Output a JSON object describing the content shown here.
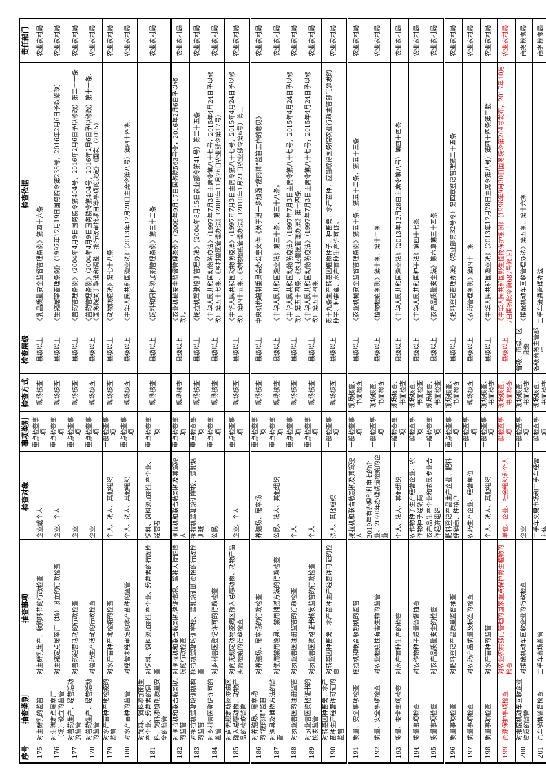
{
  "table": {
    "headers": [
      "序号",
      "抽查类别",
      "抽查事项",
      "检查对象",
      "事项类别",
      "检查方式",
      "检查层级",
      "检查依据",
      "责任部门"
    ],
    "rows": [
      {
        "no": "175",
        "category": "对生鲜乳的监管",
        "item": "对生鲜乳生产、收购环节的行政检查",
        "target": "企业或个人",
        "item_type": "重点检查事项",
        "method": "现场核查",
        "level": "县级以上",
        "basis": "《乳品质量安全监督管理条例》第四十六条",
        "department": "农业农村局",
        "red": false,
        "section_break": false
      },
      {
        "no": "176",
        "category": "对生猪定点屠宰厂（场）设立的监管",
        "item": "对生猪定点屠宰厂（场）设立的行政检查",
        "target": "企业、个人",
        "item_type": "重点检查事项",
        "method": "现场核查",
        "level": "县级以上",
        "basis": "《生猪屠宰管理条例》（1997年12月19日国务院令第238号，2016年2月6日予以修改）",
        "department": "农业农村局",
        "red": false,
        "section_break": false
      },
      {
        "no": "177",
        "category": "对兽药生产、经营活动的监管",
        "item": "对兽药经营活动的行政检查",
        "target": "企业",
        "item_type": "重点检查事项",
        "method": "现场核查",
        "level": "县级以上",
        "basis": "《兽药管理条例》（2004年4月9日国务院令第404号，2016年2月6日予以修改）第二十一条",
        "department": "农业农村局",
        "red": false,
        "section_break": false
      },
      {
        "no": "178",
        "category": "对兽药生产、经营活动的监管",
        "item": "对兽药生产活动的行政检查",
        "target": "企业",
        "item_type": "重点检查事项",
        "method": "现场核查",
        "level": "县级以上",
        "basis": "《兽药管理条例》（2004年4月9日国务院令第404号，2016年2月6日予以修改）第十一条、《国务院关于取消和调整一批行政审批项目等事项的决定》（国发（2015）",
        "department": "农业农村局",
        "red": false,
        "section_break": false
      },
      {
        "no": "179",
        "category": "对水产苗种产地检疫的监管",
        "item": "对水产苗种产地检疫的检查",
        "target": "个人、法人、其他组织",
        "item_type": "一般检查事项",
        "method": "现场核查",
        "level": "县级以上",
        "basis": "《动物防疫法》第七十八条",
        "department": "农业农村局",
        "red": false,
        "section_break": false
      },
      {
        "no": "180",
        "category": "对水产苗种的监管",
        "item": "对经营未经审定的水产苗种的监管",
        "target": "个人、法人、其他组织",
        "item_type": "重点检查事项",
        "method": "现场核查",
        "level": "县级以上",
        "basis": "《中华人民共和国渔业法》（2013年12月28日主席令第八号）第四十四条",
        "department": "农业农村局",
        "red": false,
        "section_break": false
      },
      {
        "no": "181",
        "category": "对饲料、饲料添加剂生产企业、经营者的饲料、饲料添加剂质量安全的监管",
        "item": "对饲料、饲料添加剂生产企业、经营者的行政检查",
        "target": "饲料、饲料添加剂生产企业、经营者",
        "item_type": "重点检查事项",
        "method": "现场核查",
        "level": "县级以上",
        "basis": "《饲料和饲料添加剂管理条例》第三十二条",
        "department": "农业农村局",
        "red": false,
        "section_break": false
      },
      {
        "no": "182",
        "category": "对拖拉机和联合收割机的监管",
        "item": "对拖拉机和联合收割机牌证情况、驾驶人持证情况的行政检查",
        "target": "拖拉机和联合收割机及其驾驶人",
        "item_type": "重点检查事项",
        "method": "现场核查",
        "level": "县级以上",
        "basis": "《农业机械安全监督管理条例》（2009年9月17日国务院563号令，2016年2月6日予以修改）。",
        "department": "农业农村局",
        "red": false,
        "section_break": true
      },
      {
        "no": "183",
        "category": "对拖拉机驾驶培训机构的监管",
        "item": "拖拉机驾驶培训学校、驾驶培训班资格的行政检查",
        "target": "拖拉机驾驶培训学校、驾驶培训班",
        "item_type": "重点检查事项",
        "method": "现场核查",
        "level": "县级以上",
        "basis": "《拖拉机驾驶培训管理办法》（2004年8月15日农业部令第41号）第二十五条",
        "department": "农业农村局",
        "red": false,
        "section_break": false
      },
      {
        "no": "184",
        "category": "对乡村兽医登记许可的监管",
        "item": "对乡村兽医登记许可的行政检查",
        "target": "公民",
        "item_type": "重点检查事项",
        "method": "现场核查",
        "level": "县级以上",
        "basis": "《中华人民共和国动物防疫法》（1997年7月3日主席令第八十七号，2015年4月24日予以修改）第五十七条、《乡村兽医管理办法》（2008年11月26日农业部令第17号）",
        "department": "农业农村局",
        "red": false,
        "section_break": false
      },
      {
        "no": "185",
        "category": "对向无规定动物疫病区输入易感动物、动物产品的检疫监管",
        "item": "对向无规定动物疫病区输入易感动物、动物产品实施检疫的行政检查",
        "target": "企业、个人",
        "item_type": "重点检查事项",
        "method": "现场核查",
        "level": "县级以上",
        "basis": "《中华人民共和国动物防疫法》（1997年7月3日主席令第八十七号，2015年4月24日予以修改）第四十五条、《动物检疫管理办法》（2010年1月21日农业部令第6号）第三",
        "department": "农业农村局",
        "red": false,
        "section_break": false
      },
      {
        "no": "186",
        "category": "对养殖场、屠宰场的“瘦肉精”监管",
        "item": "对养殖场、屠宰场的行政检查",
        "target": "养殖场、屠宰场",
        "item_type": "重点检查事项",
        "method": "现场核查",
        "level": "县级以上",
        "basis": "中央机构编制委员会办公室文件《关于进一步加强“瘦肉精”监管工作的意见》",
        "department": "农业农村局",
        "red": false,
        "section_break": true
      },
      {
        "no": "187",
        "category": "对渔具及捕捞方法的监管",
        "item": "对使用禁用渔具、禁用捕捞方法的行政检查",
        "target": "公民、法人、其他组织",
        "item_type": "重点检查事项",
        "method": "现场核查",
        "level": "县级以上",
        "basis": "《中华人民共和国渔业法》第三十条、第三十八条。",
        "department": "农业农村局",
        "red": false,
        "section_break": false
      },
      {
        "no": "188",
        "category": "对执业兽医的注册监管",
        "item": "对执业兽医注册监管的行政检查",
        "target": "个人",
        "item_type": "重点检查事项",
        "method": "现场核查",
        "level": "县级以上",
        "basis": "《中华人民共和国动物防疫法》（1997年7月3日主席令第八十七号，2015年4月24日予以修改）第五十四条、《执业兽医管理办法》第十四条",
        "department": "农业农村局",
        "red": false,
        "section_break": false
      },
      {
        "no": "189",
        "category": "对执业兽医资格证书的核发监管",
        "item": "对执业兽医资格证书核发监管的行政检查",
        "target": "个人",
        "item_type": "重点检查事项",
        "method": "现场核查",
        "level": "县级以上",
        "basis": "《中华人民共和国动物防疫法》（1997年7月3日主席令第八十七号，2015年4月24日予以修改）第五十四条",
        "department": "农业农村局",
        "red": false,
        "section_break": false
      },
      {
        "no": "190",
        "category": "对转基因种畜禽、水产苗种生产经营许可证的监管",
        "item": "对转基因种畜禽、水产苗种生产经营许可证的检查",
        "target": "法人、其他组织",
        "item_type": "一般检查事项",
        "method": "现场核查",
        "level": "县级以上",
        "basis": "第十九条生产转基因植物种子、种畜禽、水产苗种，应当取得国务院农业行政主管部门颁发的种子、种畜禽、水产苗种生产许可证。",
        "department": "农业农村局",
        "red": false,
        "section_break": false
      },
      {
        "no": "191",
        "category": "质量、安全事项检查",
        "item": "拖拉机和联合收割机的监管",
        "target": "拖拉机和联合收割机及其驾驶人",
        "item_type": "一般检查事项",
        "method": "现场核查、书面检查",
        "level": "县级以上",
        "basis": "《农业机械安全监督管理条例》第五十条、第五十二条、第五十三条",
        "department": "农业农村局",
        "red": false,
        "section_break": true
      },
      {
        "no": "192",
        "category": "质量、安全事项检查",
        "item": "对农业检疫性有害生物的监管",
        "target": "2019年有办理引种审批的企业、2020年办理调运检疫的企业",
        "item_type": "一般检查事项",
        "method": "现场核查、书面检查",
        "level": "县级以上",
        "basis": "《植物检疫条例》第十条、第十二条",
        "department": "农业农村局",
        "red": false,
        "section_break": false
      },
      {
        "no": "193",
        "category": "质量、安全事项检查",
        "item": "对水产苗种生产的检查",
        "target": "个人、法人、其他组织",
        "item_type": "一般检查事项",
        "method": "现场核查、书面检查",
        "level": "县级以上",
        "basis": "《中华人民共和国渔业法》（2013年12月28日主席令第八号）第四十四条",
        "department": "农业农村局",
        "red": false,
        "section_break": false
      },
      {
        "no": "194",
        "category": "质量事项检查",
        "item": "对农作物种子质量监督抽查",
        "target": "农作物种子生产经营企业、农作物种子经销商",
        "item_type": "一般检查事项",
        "method": "现场核查、书面检查",
        "level": "县级以上",
        "basis": "《中华人民共和国种子法》第四十七条",
        "department": "农业农村局",
        "red": false,
        "section_break": false
      },
      {
        "no": "195",
        "category": "质量事项检查",
        "item": "对农产品质量安全的检查",
        "target": "农产品生产企业和农民专业合作经济组织",
        "item_type": "一般检查事项",
        "method": "现场核查、书面检查",
        "level": "县级以上",
        "basis": "《农产品质量安全法》第六章第三十四条",
        "department": "农业农村局",
        "red": false,
        "section_break": false
      },
      {
        "no": "196",
        "category": "质量事项检查",
        "item": "对肥料登记产品质量监督抽查",
        "target": "肥料登记产品生产企业、肥料经销商、种植户",
        "item_type": "重点检查事项",
        "method": "现场核查、书面检查",
        "level": "县级以上",
        "basis": "《肥料登记管理办法》（农业部第32号令）第四章登记管理第二十五条",
        "department": "农业农村局",
        "red": false,
        "section_break": true
      },
      {
        "no": "197",
        "category": "质量事项检查",
        "item": "对农药产品质量及标签的检查",
        "target": "农药生产企业、经营单位",
        "item_type": "一般检查事项",
        "method": "现场核查",
        "level": "县级以上",
        "basis": "《农药管理条例》第四十一条",
        "department": "农业农村局",
        "red": false,
        "section_break": false
      },
      {
        "no": "198",
        "category": "质量事项检查",
        "item": "对水产苗种的监管",
        "target": "个人、法人、其他组织",
        "item_type": "一般检查事项",
        "method": "现场核查、书面检查",
        "level": "县级以上",
        "basis": "《中华人民共和国渔业法》（2013年12月28日主席令第八号）第四十四条第二款",
        "department": "农业农村局",
        "red": false,
        "section_break": false
      },
      {
        "no": "199",
        "category": "资源保护事项检查",
        "item": "对农业农村部门管理的国家重点保护野生植物的检查",
        "target": "单位、企业、社会组织和个人",
        "item_type": "一般检查事项",
        "method": "现场核查、书面检查",
        "level": "县级以上",
        "basis": "《中华人民共和国野生植物保护条例》（1996年9月30日国务院令第204号发布，2017年10月7日国务院令第687号修正）",
        "department": "农业农村局",
        "red": true,
        "section_break": false
      },
      {
        "no": "200",
        "category": "对报废机动车回收企业资质的监管",
        "item": "对报废机动车回收企业的行政检查",
        "target": "企业",
        "item_type": "一般检查事项",
        "method": "现场核查、书面检查",
        "level": "省级、市级、区县级",
        "basis": "《报废机动车回收管理办法》第五条、第十六条",
        "department": "商务粮食局",
        "red": false,
        "section_break": false
      },
      {
        "no": "201",
        "category": "汽车销售监督检查",
        "item": "二手车市场监管",
        "target": "二手车交易市场和二手车经营主体",
        "item_type": "一般检查事项",
        "method": "现场核查、书面检查",
        "level": "各级商务主管部门",
        "basis": "二手车流通管理办法",
        "department": "商务粮食局",
        "red": false,
        "section_break": false
      }
    ]
  }
}
